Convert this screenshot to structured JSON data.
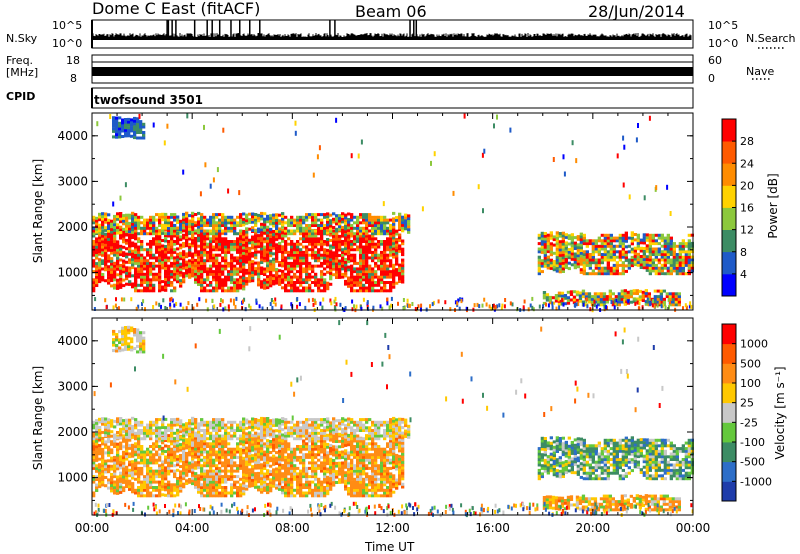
{
  "header": {
    "title": "Dome C East (fitACF)",
    "beam": "Beam 06",
    "date": "28/Jun/2014"
  },
  "top_panels": {
    "nsky_label": "N.Sky",
    "nsky_ticks": [
      "10^5",
      "10^0"
    ],
    "nsearch_label": "N.Search",
    "nsearch_ticks": [
      "10^5",
      "10^0"
    ],
    "freq_label": "Freq.",
    "freq_unit": "[MHz]",
    "freq_ticks": [
      "18",
      "8"
    ],
    "nave_label": "Nave",
    "nave_ticks": [
      "60",
      "0"
    ],
    "cpid_label": "CPID",
    "cpid_value": "twofsound 3501"
  },
  "chart_data": [
    {
      "type": "heatmap",
      "name": "power",
      "ylabel": "Slant Range [km]",
      "ylim": [
        180,
        4500
      ],
      "yticks": [
        "4000",
        "3000",
        "2000",
        "1000"
      ],
      "colorbar_label": "Power [dB]",
      "colorbar_ticks": [
        "28",
        "24",
        "20",
        "16",
        "12",
        "8",
        "4"
      ],
      "colors": [
        "#0000ff",
        "#1e5ac8",
        "#3c8c64",
        "#8cc83c",
        "#ffd200",
        "#ff8c00",
        "#ff5a00",
        "#ff0000"
      ],
      "echo_regions": [
        {
          "t_start": 0.0,
          "t_end": 12.4,
          "r_min": 500,
          "r_max": 2000,
          "level": "high"
        },
        {
          "t_start": 0.0,
          "t_end": 12.6,
          "r_min": 1800,
          "r_max": 2300,
          "level": "mid"
        },
        {
          "t_start": 0.8,
          "t_end": 2.0,
          "r_min": 3900,
          "r_max": 4400,
          "level": "low"
        },
        {
          "t_start": 17.8,
          "t_end": 24.0,
          "r_min": 900,
          "r_max": 1900,
          "level": "mid"
        },
        {
          "t_start": 18.0,
          "t_end": 23.5,
          "r_min": 250,
          "r_max": 600,
          "level": "mid"
        }
      ]
    },
    {
      "type": "heatmap",
      "name": "velocity",
      "ylabel": "Slant Range [km]",
      "ylim": [
        180,
        4500
      ],
      "yticks": [
        "4000",
        "3000",
        "2000",
        "1000"
      ],
      "colorbar_label": "Velocity [m s⁻¹]",
      "colorbar_ticks": [
        "1000",
        "500",
        "100",
        "25",
        "-25",
        "-100",
        "-500",
        "-1000"
      ],
      "colors": [
        "#1e3caa",
        "#2d6ec8",
        "#3c8c64",
        "#64c83c",
        "#c8c8c8",
        "#ffc800",
        "#ff8c14",
        "#ff5a00",
        "#ff0000"
      ],
      "echo_regions": [
        {
          "t_start": 0.0,
          "t_end": 12.4,
          "r_min": 500,
          "r_max": 2000,
          "level": "away"
        },
        {
          "t_start": 0.0,
          "t_end": 12.6,
          "r_min": 1800,
          "r_max": 2300,
          "level": "near-zero"
        },
        {
          "t_start": 0.8,
          "t_end": 2.0,
          "r_min": 3700,
          "r_max": 4300,
          "level": "near-zero"
        },
        {
          "t_start": 17.8,
          "t_end": 24.0,
          "r_min": 900,
          "r_max": 1900,
          "level": "toward"
        },
        {
          "t_start": 18.0,
          "t_end": 23.5,
          "r_min": 250,
          "r_max": 600,
          "level": "away"
        }
      ]
    }
  ],
  "x_axis": {
    "label": "Time UT",
    "ticks": [
      "00:00",
      "04:00",
      "08:00",
      "12:00",
      "16:00",
      "20:00",
      "00:00"
    ]
  }
}
